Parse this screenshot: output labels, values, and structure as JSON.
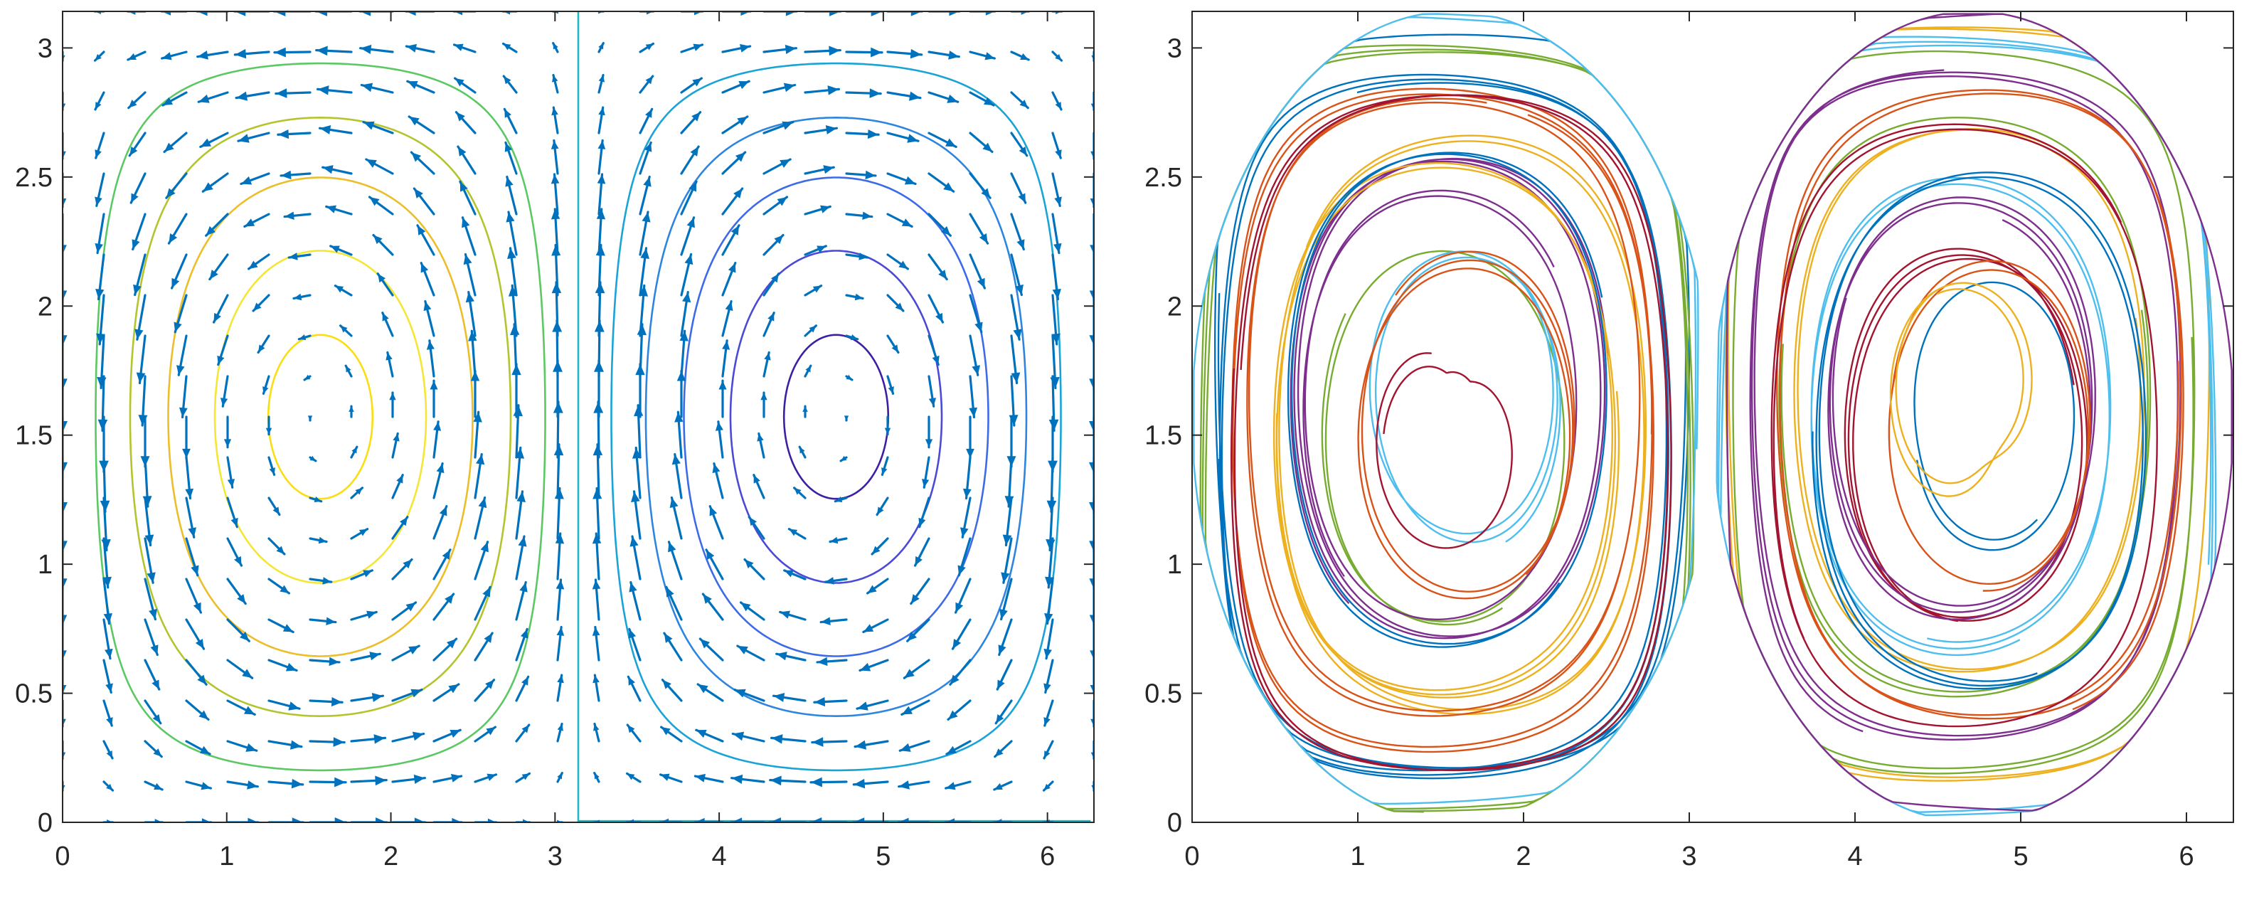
{
  "chart_data": [
    {
      "type": "quiver-contour",
      "title": "",
      "xlabel": "",
      "ylabel": "",
      "xlim": [
        0,
        6.2832
      ],
      "ylim": [
        0,
        3.1416
      ],
      "xticks": [
        0,
        1,
        2,
        3,
        4,
        5,
        6
      ],
      "yticks": [
        0,
        0.5,
        1,
        1.5,
        2,
        2.5,
        3
      ],
      "xtick_labels": [
        "0",
        "1",
        "2",
        "3",
        "4",
        "5",
        "6"
      ],
      "ytick_labels": [
        "0",
        "0.5",
        "1",
        "1.5",
        "2",
        "2.5",
        "3"
      ],
      "grid": false,
      "legend": "none",
      "field": "stream function psi = sin(x)*sin(y), velocity u = dpsi/dy, v = -dpsi/dx",
      "arrow_color": "#0072BD",
      "quiver_grid": {
        "nx": 26,
        "ny": 21
      },
      "contour_levels": [
        {
          "level": 0.95,
          "color": "#FADE12"
        },
        {
          "level": 0.8,
          "color": "#F5E636"
        },
        {
          "level": 0.6,
          "color": "#EBBE2A"
        },
        {
          "level": 0.4,
          "color": "#B3C42D"
        },
        {
          "level": 0.2,
          "color": "#5CC864"
        },
        {
          "level": 0.0,
          "color": "#1EB8C2"
        },
        {
          "level": -0.2,
          "color": "#1AA3D6"
        },
        {
          "level": -0.4,
          "color": "#2E85E0"
        },
        {
          "level": -0.6,
          "color": "#3D6BE8"
        },
        {
          "level": -0.8,
          "color": "#4A4AD6"
        },
        {
          "level": -0.95,
          "color": "#3D1FA3"
        }
      ]
    },
    {
      "type": "line",
      "title": "",
      "xlabel": "",
      "ylabel": "",
      "xlim": [
        0,
        6.2832
      ],
      "ylim": [
        0,
        3.1416
      ],
      "xticks": [
        0,
        1,
        2,
        3,
        4,
        5,
        6
      ],
      "yticks": [
        0,
        0.5,
        1,
        1.5,
        2,
        2.5,
        3
      ],
      "xtick_labels": [
        "0",
        "1",
        "2",
        "3",
        "4",
        "5",
        "6"
      ],
      "ytick_labels": [
        "0",
        "0.5",
        "1",
        "1.5",
        "2",
        "2.5",
        "3"
      ],
      "grid": false,
      "legend": "none",
      "series_colors": [
        "#0072BD",
        "#D95319",
        "#EDB120",
        "#7E2F8E",
        "#77AC30",
        "#4DBEEE",
        "#A2142F"
      ],
      "trajectories": [
        {
          "cx": 1.5708,
          "cy": 1.5708,
          "psi0": 0.15,
          "phase0": 0.3,
          "turns": 1.6
        },
        {
          "cx": 1.5708,
          "cy": 1.5708,
          "psi0": 0.3,
          "phase0": 1.2,
          "turns": 2.2
        },
        {
          "cx": 1.5708,
          "cy": 1.5708,
          "psi0": 0.45,
          "phase0": 2.5,
          "turns": 1.9
        },
        {
          "cx": 1.5708,
          "cy": 1.5708,
          "psi0": 0.6,
          "phase0": 4.0,
          "turns": 2.6
        },
        {
          "cx": 1.5708,
          "cy": 1.5708,
          "psi0": 0.75,
          "phase0": 5.1,
          "turns": 1.4
        },
        {
          "cx": 1.5708,
          "cy": 1.5708,
          "psi0": 0.85,
          "phase0": 0.9,
          "turns": 2.3
        },
        {
          "cx": 1.5708,
          "cy": 1.5708,
          "psi0": 0.93,
          "phase0": 3.3,
          "turns": 1.2
        },
        {
          "cx": 1.5708,
          "cy": 1.5708,
          "psi0": 0.22,
          "phase0": 2.0,
          "turns": 2.8
        },
        {
          "cx": 1.5708,
          "cy": 1.5708,
          "psi0": 0.38,
          "phase0": 5.8,
          "turns": 1.7
        },
        {
          "cx": 1.5708,
          "cy": 1.5708,
          "psi0": 0.52,
          "phase0": 0.1,
          "turns": 2.4
        },
        {
          "cx": 1.5708,
          "cy": 1.5708,
          "psi0": 0.68,
          "phase0": 3.9,
          "turns": 1.5
        },
        {
          "cx": 1.5708,
          "cy": 1.5708,
          "psi0": 0.1,
          "phase0": 4.6,
          "turns": 2.9
        },
        {
          "cx": 1.5708,
          "cy": 1.5708,
          "psi0": 0.05,
          "phase0": 1.8,
          "turns": 1.3
        },
        {
          "cx": 1.5708,
          "cy": 1.5708,
          "psi0": 0.26,
          "phase0": 3.0,
          "turns": 2.0
        },
        {
          "cx": 1.5708,
          "cy": 1.5708,
          "psi0": 0.58,
          "phase0": 5.5,
          "turns": 1.8
        },
        {
          "cx": 1.5708,
          "cy": 1.5708,
          "psi0": 0.8,
          "phase0": 2.2,
          "turns": 2.5
        },
        {
          "cx": 4.7124,
          "cy": 1.5708,
          "psi0": 0.12,
          "phase0": 0.5,
          "turns": 1.8
        },
        {
          "cx": 4.7124,
          "cy": 1.5708,
          "psi0": 0.28,
          "phase0": 1.7,
          "turns": 2.4
        },
        {
          "cx": 4.7124,
          "cy": 1.5708,
          "psi0": 0.44,
          "phase0": 2.9,
          "turns": 1.6
        },
        {
          "cx": 4.7124,
          "cy": 1.5708,
          "psi0": 0.62,
          "phase0": 4.4,
          "turns": 2.1
        },
        {
          "cx": 4.7124,
          "cy": 1.5708,
          "psi0": 0.76,
          "phase0": 0.2,
          "turns": 2.7
        },
        {
          "cx": 4.7124,
          "cy": 1.5708,
          "psi0": 0.88,
          "phase0": 3.6,
          "turns": 1.3
        },
        {
          "cx": 4.7124,
          "cy": 1.5708,
          "psi0": 0.35,
          "phase0": 5.2,
          "turns": 2.2
        },
        {
          "cx": 4.7124,
          "cy": 1.5708,
          "psi0": 0.5,
          "phase0": 1.0,
          "turns": 1.9
        },
        {
          "cx": 4.7124,
          "cy": 1.5708,
          "psi0": 0.7,
          "phase0": 2.6,
          "turns": 2.8
        },
        {
          "cx": 4.7124,
          "cy": 1.5708,
          "psi0": 0.18,
          "phase0": 4.0,
          "turns": 1.4
        },
        {
          "cx": 4.7124,
          "cy": 1.5708,
          "psi0": 0.08,
          "phase0": 5.9,
          "turns": 2.6
        },
        {
          "cx": 4.7124,
          "cy": 1.5708,
          "psi0": 0.4,
          "phase0": 0.7,
          "turns": 1.5
        },
        {
          "cx": 4.7124,
          "cy": 1.5708,
          "psi0": 0.55,
          "phase0": 3.2,
          "turns": 2.3
        },
        {
          "cx": 4.7124,
          "cy": 1.5708,
          "psi0": 0.82,
          "phase0": 4.8,
          "turns": 1.7
        },
        {
          "cx": 4.7124,
          "cy": 1.5708,
          "psi0": 0.92,
          "phase0": 2.0,
          "turns": 2.0
        },
        {
          "cx": 4.7124,
          "cy": 1.5708,
          "psi0": 0.03,
          "phase0": 1.4,
          "turns": 1.2
        }
      ]
    }
  ]
}
